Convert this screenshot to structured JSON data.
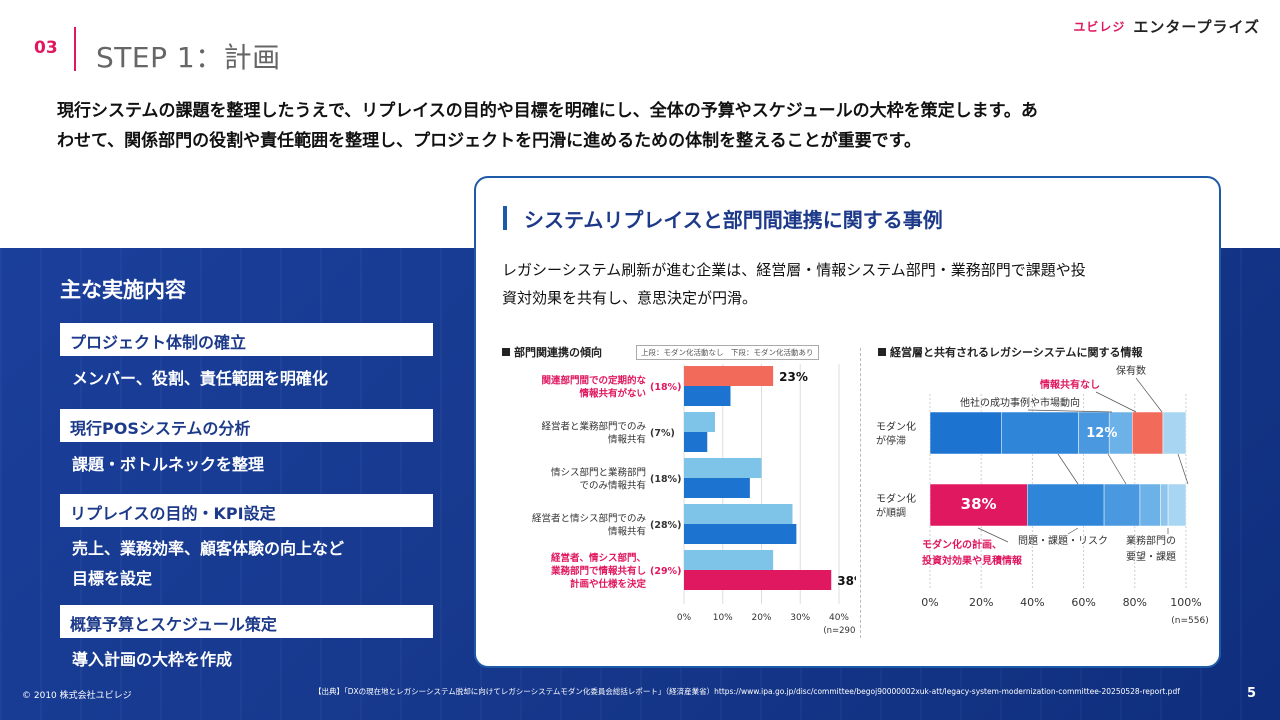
{
  "header": {
    "section_number": "03",
    "title": "STEP 1：計画",
    "logo_mark": "ユビレジ",
    "logo_text": "エンタープライズ"
  },
  "intro": {
    "line1": "現行システムの課題を整理したうえで、リプレイスの目的や目標を明確にし、全体の予算やスケジュールの大枠を策定します。あ",
    "line2": "わせて、関係部門の役割や責任範囲を整理し、プロジェクトを円滑に進めるための体制を整えることが重要です。"
  },
  "left": {
    "heading": "主な実施内容",
    "items": [
      {
        "label": "プロジェクト体制の確立",
        "desc": "メンバー、役割、責任範囲を明確化"
      },
      {
        "label": "現行POSシステムの分析",
        "desc": "課題・ボトルネックを整理"
      },
      {
        "label": "リプレイスの目的・KPI設定",
        "desc": "売上、業務効率、顧客体験の向上など",
        "desc2": "目標を設定"
      },
      {
        "label": "概算予算とスケジュール策定",
        "desc": "導入計画の大枠を作成"
      }
    ]
  },
  "card": {
    "title": "システムリプレイスと部門間連携に関する事例",
    "text_line1": "レガシーシステム刷新が進む企業は、経営層・情報システム部門・業務部門で課題や投",
    "text_line2": "資対効果を共有し、意思決定が円滑。"
  },
  "footer": {
    "copyright": "© 2010 株式会社ユビレジ",
    "source": "【出典】「DXの現在地とレガシーシステム脱却に向けてレガシーシステムモダン化委員会総括レポート」（経済産業省）https://www.ipa.go.jp/disc/committee/begoj90000002xuk-att/legacy-system-modernization-committee-20250528-report.pdf",
    "page": "5"
  },
  "colors": {
    "accent": "#e0185f",
    "brand_blue": "#1d3a8a",
    "bar_light": "#7ec3e8",
    "bar_dark": "#1d74d0",
    "highlight_red": "#f26a5a"
  },
  "chart_data": [
    {
      "type": "bar",
      "title": "部門関連携の傾向",
      "legend_note": "上段：モダン化活動なし　下段：モダン化活動あり",
      "categories": [
        "関連部門間での定期的な情報共有がない (18%)",
        "経営者と業務部門でのみ情報共有 (7%)",
        "情シス部門と業務部門でのみ情報共有 (18%)",
        "経営者と情シス部門でのみ情報共有 (28%)",
        "経営者、情シス部門、業務部門で情報共有し計画や仕様を決定 (29%)"
      ],
      "category_lines": [
        [
          "関連部門間での定期的な",
          "情報共有がない",
          "(18%)"
        ],
        [
          "経営者と業務部門でのみ",
          "情報共有",
          "(7%)"
        ],
        [
          "情シス部門と業務部門",
          "でのみ情報共有",
          "(18%)"
        ],
        [
          "経営者と情シス部門でのみ",
          "情報共有",
          "(28%)"
        ],
        [
          "経営者、情シス部門、",
          "業務部門で情報共有し",
          "計画や仕様を決定",
          "(29%)"
        ]
      ],
      "series": [
        {
          "name": "モダン化活動なし",
          "values": [
            23,
            8,
            20,
            28,
            23
          ]
        },
        {
          "name": "モダン化活動あり",
          "values": [
            12,
            6,
            17,
            29,
            38
          ]
        }
      ],
      "data_labels": [
        "23%",
        "38%"
      ],
      "xlim": [
        0,
        40
      ],
      "xticks": [
        "0%",
        "10%",
        "20%",
        "30%",
        "40%"
      ],
      "n_label": "(n=290)"
    },
    {
      "type": "bar",
      "stacked": true,
      "title": "経営層と共有されるレガシーシステムに関する情報",
      "categories": [
        "モダン化が停滞",
        "モダン化が順調"
      ],
      "category_lines": [
        [
          "モダン化",
          "が停滞"
        ],
        [
          "モダン化",
          "が順調"
        ]
      ],
      "series": [
        {
          "name": "モダン化の計画、投資対効果や見積情報",
          "values": [
            28,
            38
          ]
        },
        {
          "name": "問題・課題・リスク",
          "values": [
            30,
            30
          ]
        },
        {
          "name": "他社の成功事例や市場動向",
          "values": [
            12,
            14
          ]
        },
        {
          "name": "業務部門の要望・課題",
          "values": [
            9,
            8
          ]
        },
        {
          "name": "情報共有なし",
          "values": [
            12,
            3
          ]
        },
        {
          "name": "保有数",
          "values": [
            9,
            7
          ]
        }
      ],
      "data_labels": [
        "12%",
        "38%"
      ],
      "annotations": [
        "保有数",
        "情報共有なし",
        "他社の成功事例や市場動向",
        "モダン化の計画、",
        "投資対効果や見積情報",
        "問題・課題・リスク",
        "業務部門の",
        "要望・課題"
      ],
      "xlim": [
        0,
        100
      ],
      "xticks": [
        "0%",
        "20%",
        "40%",
        "60%",
        "80%",
        "100%"
      ],
      "n_label": "(n=556)"
    }
  ]
}
